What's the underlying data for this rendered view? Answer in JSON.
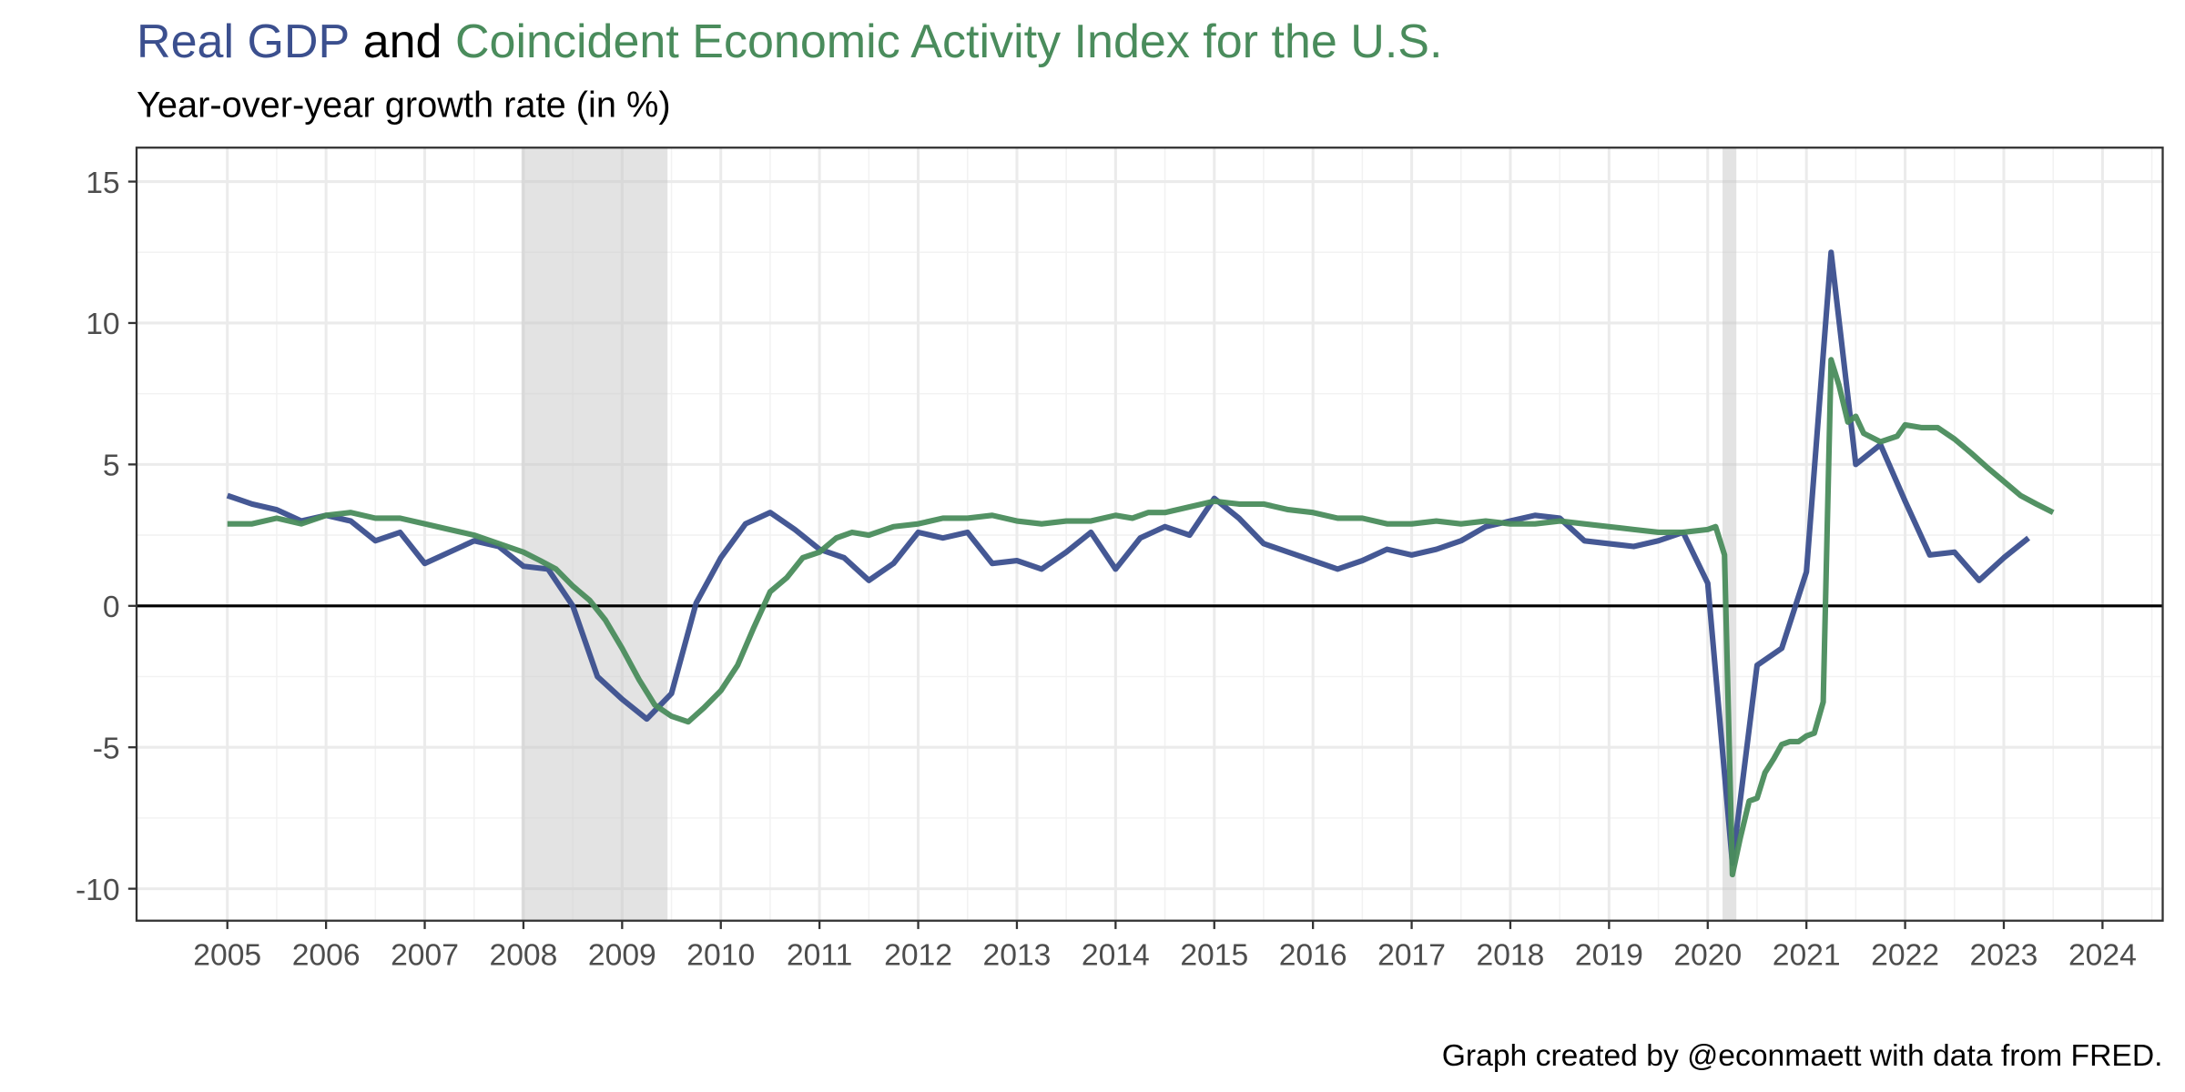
{
  "chart_data": {
    "type": "line",
    "title": [
      "Real GDP",
      "and",
      "Coincident Economic Activity Index for the U.S."
    ],
    "subtitle": "Year-over-year growth rate (in %)",
    "caption": "Graph created by @econmaett with data from FRED.",
    "xlim": [
      2004.08,
      2024.61
    ],
    "xticks": [
      2005,
      2006,
      2007,
      2008,
      2009,
      2010,
      2011,
      2012,
      2013,
      2014,
      2015,
      2016,
      2017,
      2018,
      2019,
      2020,
      2021,
      2022,
      2023,
      2024
    ],
    "ylim": [
      -11.13,
      16.2
    ],
    "yticks": [
      -10,
      -5,
      0,
      5,
      10,
      15
    ],
    "grid": true,
    "reference_line": 0,
    "recessions": [
      [
        2007.98,
        2009.46
      ],
      [
        2020.15,
        2020.29
      ]
    ],
    "series": [
      {
        "name": "Real GDP",
        "color": "#3b4f8e",
        "x": [
          2005,
          2005.25,
          2005.5,
          2005.75,
          2006,
          2006.25,
          2006.5,
          2006.75,
          2007,
          2007.25,
          2007.5,
          2007.75,
          2008,
          2008.25,
          2008.5,
          2008.75,
          2009,
          2009.25,
          2009.5,
          2009.75,
          2010,
          2010.25,
          2010.5,
          2010.75,
          2011,
          2011.25,
          2011.5,
          2011.75,
          2012,
          2012.25,
          2012.5,
          2012.75,
          2013,
          2013.25,
          2013.5,
          2013.75,
          2014,
          2014.25,
          2014.5,
          2014.75,
          2015,
          2015.25,
          2015.5,
          2015.75,
          2016,
          2016.25,
          2016.5,
          2016.75,
          2017,
          2017.25,
          2017.5,
          2017.75,
          2018,
          2018.25,
          2018.5,
          2018.75,
          2019,
          2019.25,
          2019.5,
          2019.75,
          2020,
          2020.25,
          2020.5,
          2020.75,
          2021,
          2021.25,
          2021.5,
          2021.75,
          2022,
          2022.25,
          2022.5,
          2022.75,
          2023,
          2023.25
        ],
        "values": [
          3.9,
          3.6,
          3.4,
          3.0,
          3.2,
          3.0,
          2.3,
          2.6,
          1.5,
          1.9,
          2.3,
          2.1,
          1.4,
          1.3,
          0.0,
          -2.5,
          -3.3,
          -4.0,
          -3.1,
          0.1,
          1.7,
          2.9,
          3.3,
          2.7,
          2.0,
          1.7,
          0.9,
          1.5,
          2.6,
          2.4,
          2.6,
          1.5,
          1.6,
          1.3,
          1.9,
          2.6,
          1.3,
          2.4,
          2.8,
          2.5,
          3.8,
          3.1,
          2.2,
          1.9,
          1.6,
          1.3,
          1.6,
          2.0,
          1.8,
          2.0,
          2.3,
          2.8,
          3.0,
          3.2,
          3.1,
          2.3,
          2.2,
          2.1,
          2.3,
          2.6,
          0.8,
          -9.1,
          -2.1,
          -1.5,
          1.2,
          12.5,
          5.0,
          5.7,
          3.7,
          1.8,
          1.9,
          0.9,
          1.7,
          2.4
        ]
      },
      {
        "name": "Coincident Economic Activity Index for the U.S.",
        "color": "#4a8c5c",
        "x": [
          2005,
          2005.25,
          2005.5,
          2005.75,
          2006,
          2006.25,
          2006.5,
          2006.75,
          2007,
          2007.25,
          2007.5,
          2007.75,
          2008,
          2008.17,
          2008.33,
          2008.5,
          2008.67,
          2008.83,
          2009,
          2009.17,
          2009.33,
          2009.5,
          2009.67,
          2009.83,
          2010,
          2010.17,
          2010.33,
          2010.5,
          2010.67,
          2010.83,
          2011,
          2011.17,
          2011.33,
          2011.5,
          2011.75,
          2012,
          2012.25,
          2012.5,
          2012.75,
          2013,
          2013.25,
          2013.5,
          2013.75,
          2014,
          2014.17,
          2014.33,
          2014.5,
          2014.75,
          2015,
          2015.25,
          2015.5,
          2015.75,
          2016,
          2016.25,
          2016.5,
          2016.75,
          2017,
          2017.25,
          2017.5,
          2017.75,
          2018,
          2018.25,
          2018.5,
          2018.75,
          2019,
          2019.25,
          2019.5,
          2019.75,
          2020,
          2020.08,
          2020.17,
          2020.25,
          2020.33,
          2020.42,
          2020.5,
          2020.58,
          2020.67,
          2020.75,
          2020.83,
          2020.92,
          2021,
          2021.08,
          2021.17,
          2021.25,
          2021.33,
          2021.42,
          2021.5,
          2021.58,
          2021.75,
          2021.92,
          2022,
          2022.17,
          2022.33,
          2022.5,
          2022.67,
          2022.83,
          2023,
          2023.17,
          2023.33,
          2023.5
        ],
        "values": [
          2.9,
          2.9,
          3.1,
          2.9,
          3.2,
          3.3,
          3.1,
          3.1,
          2.9,
          2.7,
          2.5,
          2.2,
          1.9,
          1.6,
          1.3,
          0.7,
          0.2,
          -0.5,
          -1.5,
          -2.6,
          -3.5,
          -3.9,
          -4.1,
          -3.6,
          -3.0,
          -2.1,
          -0.8,
          0.5,
          1.0,
          1.7,
          1.9,
          2.4,
          2.6,
          2.5,
          2.8,
          2.9,
          3.1,
          3.1,
          3.2,
          3.0,
          2.9,
          3.0,
          3.0,
          3.2,
          3.1,
          3.3,
          3.3,
          3.5,
          3.7,
          3.6,
          3.6,
          3.4,
          3.3,
          3.1,
          3.1,
          2.9,
          2.9,
          3.0,
          2.9,
          3.0,
          2.9,
          2.9,
          3.0,
          2.9,
          2.8,
          2.7,
          2.6,
          2.6,
          2.7,
          2.8,
          1.8,
          -9.5,
          -8.2,
          -6.9,
          -6.8,
          -5.9,
          -5.4,
          -4.9,
          -4.8,
          -4.8,
          -4.6,
          -4.5,
          -3.4,
          8.7,
          7.8,
          6.5,
          6.7,
          6.1,
          5.8,
          6.0,
          6.4,
          6.3,
          6.3,
          5.9,
          5.4,
          4.9,
          4.4,
          3.9,
          3.6,
          3.3
        ]
      }
    ]
  }
}
